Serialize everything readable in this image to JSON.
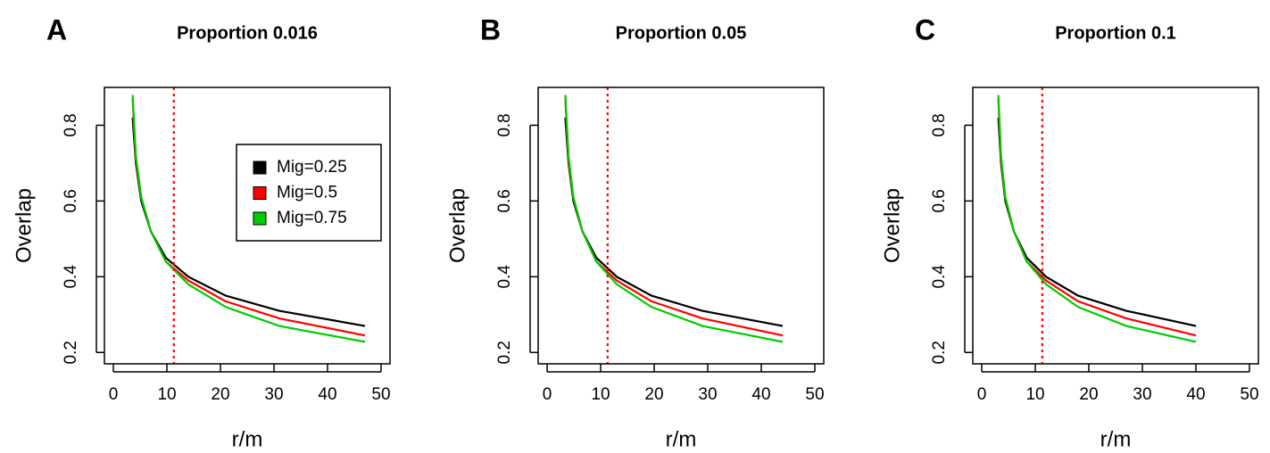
{
  "chart_data": [
    {
      "type": "line",
      "panel": "A",
      "title": "Proportion 0.016",
      "xlabel": "r/m",
      "ylabel": "Overlap",
      "x": [
        3.6,
        4.2,
        5.2,
        7,
        9.8,
        14,
        21,
        31,
        47
      ],
      "series": [
        {
          "name": "Mig=0.25",
          "color": "#000000",
          "values": [
            0.82,
            0.7,
            0.6,
            0.52,
            0.45,
            0.4,
            0.35,
            0.31,
            0.27
          ]
        },
        {
          "name": "Mig=0.5",
          "color": "#ff0000",
          "values": [
            0.87,
            0.71,
            0.61,
            0.52,
            0.44,
            0.39,
            0.335,
            0.29,
            0.245
          ]
        },
        {
          "name": "Mig=0.75",
          "color": "#00cc00",
          "values": [
            0.88,
            0.72,
            0.61,
            0.52,
            0.44,
            0.38,
            0.32,
            0.27,
            0.228
          ]
        }
      ],
      "xlim": [
        -1.67,
        51.67
      ],
      "ylim": [
        0.17,
        0.9
      ],
      "xticks": [
        0,
        10,
        20,
        30,
        40,
        50
      ],
      "yticks": [
        0.2,
        0.4,
        0.6,
        0.8
      ],
      "vline": 11.3,
      "vline_color": "#ff0000",
      "legend": true
    },
    {
      "type": "line",
      "panel": "B",
      "title": "Proportion 0.05",
      "xlabel": "r/m",
      "ylabel": "Overlap",
      "x": [
        3.4,
        4,
        4.9,
        6.6,
        9.2,
        13,
        19.5,
        29,
        44
      ],
      "series": [
        {
          "name": "Mig=0.25",
          "color": "#000000",
          "values": [
            0.82,
            0.7,
            0.6,
            0.52,
            0.45,
            0.4,
            0.35,
            0.31,
            0.27
          ]
        },
        {
          "name": "Mig=0.5",
          "color": "#ff0000",
          "values": [
            0.87,
            0.71,
            0.61,
            0.52,
            0.44,
            0.39,
            0.335,
            0.29,
            0.245
          ]
        },
        {
          "name": "Mig=0.75",
          "color": "#00cc00",
          "values": [
            0.88,
            0.72,
            0.61,
            0.52,
            0.44,
            0.38,
            0.32,
            0.27,
            0.228
          ]
        }
      ],
      "xlim": [
        -1.67,
        51.67
      ],
      "ylim": [
        0.17,
        0.9
      ],
      "xticks": [
        0,
        10,
        20,
        30,
        40,
        50
      ],
      "yticks": [
        0.2,
        0.4,
        0.6,
        0.8
      ],
      "vline": 11.3,
      "vline_color": "#ff0000",
      "legend": false
    },
    {
      "type": "line",
      "panel": "C",
      "title": "Proportion 0.1",
      "xlabel": "r/m",
      "ylabel": "Overlap",
      "x": [
        3.1,
        3.6,
        4.4,
        6,
        8.4,
        12,
        18,
        27,
        40
      ],
      "series": [
        {
          "name": "Mig=0.25",
          "color": "#000000",
          "values": [
            0.82,
            0.7,
            0.6,
            0.52,
            0.45,
            0.4,
            0.35,
            0.31,
            0.27
          ]
        },
        {
          "name": "Mig=0.5",
          "color": "#ff0000",
          "values": [
            0.87,
            0.71,
            0.61,
            0.52,
            0.44,
            0.39,
            0.335,
            0.29,
            0.245
          ]
        },
        {
          "name": "Mig=0.75",
          "color": "#00cc00",
          "values": [
            0.88,
            0.72,
            0.61,
            0.52,
            0.44,
            0.38,
            0.32,
            0.27,
            0.228
          ]
        }
      ],
      "xlim": [
        -1.67,
        51.67
      ],
      "ylim": [
        0.17,
        0.9
      ],
      "xticks": [
        0,
        10,
        20,
        30,
        40,
        50
      ],
      "yticks": [
        0.2,
        0.4,
        0.6,
        0.8
      ],
      "vline": 11.3,
      "vline_color": "#ff0000",
      "legend": false
    }
  ]
}
